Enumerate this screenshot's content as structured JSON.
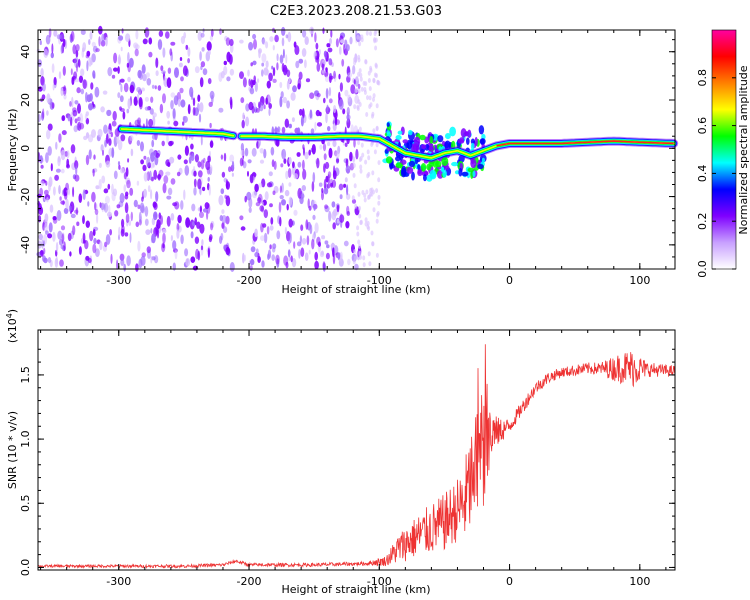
{
  "title": "C2E3.2023.208.21.53.G03",
  "chart_data": [
    {
      "type": "heatmap",
      "xlabel": "Height of straight line (km)",
      "ylabel": "Frequency (Hz)",
      "xlim": [
        -362,
        127
      ],
      "ylim": [
        -50,
        49
      ],
      "xticks": [
        -300,
        -200,
        -100,
        0,
        100
      ],
      "yticks": [
        -40,
        -20,
        0,
        20,
        40
      ],
      "colorbar": {
        "label": "Normalized spectral amplitude",
        "range": [
          0,
          1
        ],
        "ticks": [
          0.0,
          0.2,
          0.4,
          0.6,
          0.8
        ],
        "colors": [
          "#ffffff",
          "#c8a0ff",
          "#7f00ff",
          "#0000ff",
          "#00ffff",
          "#00ff00",
          "#ffff00",
          "#ff8000",
          "#ff0000",
          "#ff00a0"
        ]
      },
      "ridge": {
        "x": [
          -298,
          -280,
          -260,
          -240,
          -220,
          -210,
          -190,
          -170,
          -150,
          -130,
          -115,
          -100,
          -90,
          -80,
          -70,
          -60,
          -50,
          -40,
          -30,
          -20,
          -10,
          0,
          20,
          40,
          60,
          80,
          100,
          127
        ],
        "y": [
          8,
          7.5,
          7,
          6.5,
          6,
          5,
          5,
          4.5,
          4.5,
          5,
          5,
          4,
          1,
          -2,
          -3,
          -4,
          -2,
          -1,
          -3,
          -1,
          1,
          2,
          2,
          2,
          2.5,
          3,
          2.5,
          2
        ]
      },
      "noise_x_range": [
        -362,
        -115
      ]
    },
    {
      "type": "line",
      "xlabel": "Height of straight line (km)",
      "ylabel": "SNR (10 * v/v)",
      "yscale_label": "(x10",
      "yscale_exp": "4",
      "yscale_close": ")",
      "xlim": [
        -362,
        127
      ],
      "ylim": [
        -0.02,
        1.85
      ],
      "xticks": [
        -300,
        -200,
        -100,
        0,
        100
      ],
      "yticks": [
        0.0,
        0.5,
        1.0,
        1.5
      ],
      "color": "#ee3333",
      "envelope": {
        "x": [
          -362,
          -250,
          -220,
          -210,
          -200,
          -150,
          -110,
          -95,
          -85,
          -70,
          -50,
          -35,
          -25,
          -18,
          -10,
          0,
          10,
          20,
          30,
          40,
          60,
          80,
          90,
          100,
          110,
          127
        ],
        "y": [
          0.01,
          0.01,
          0.02,
          0.05,
          0.02,
          0.02,
          0.03,
          0.05,
          0.15,
          0.25,
          0.35,
          0.5,
          0.8,
          1.0,
          1.05,
          1.1,
          1.25,
          1.4,
          1.48,
          1.52,
          1.55,
          1.55,
          1.56,
          1.55,
          1.54,
          1.53
        ]
      },
      "noise_amp": {
        "x": [
          -362,
          -110,
          -95,
          -85,
          -60,
          -40,
          -30,
          -20,
          -15,
          -10,
          0,
          20,
          40,
          70,
          85,
          95,
          105,
          127
        ],
        "y": [
          0.01,
          0.015,
          0.04,
          0.12,
          0.2,
          0.25,
          0.4,
          0.5,
          0.4,
          0.12,
          0.06,
          0.05,
          0.04,
          0.05,
          0.12,
          0.15,
          0.06,
          0.04
        ]
      }
    }
  ]
}
